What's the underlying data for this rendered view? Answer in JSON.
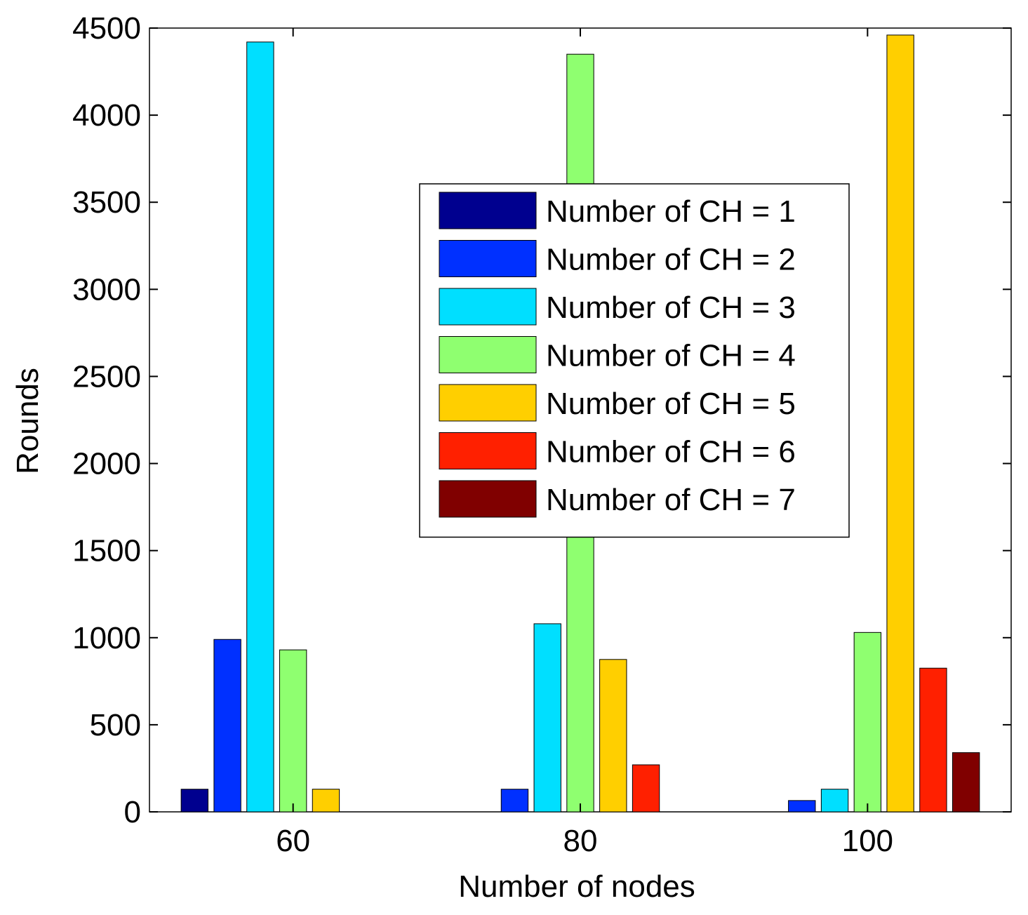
{
  "chart_data": {
    "type": "bar",
    "xlabel": "Number of nodes",
    "ylabel": "Rounds",
    "ylim": [
      0,
      4500
    ],
    "yticks": [
      0,
      500,
      1000,
      1500,
      2000,
      2500,
      3000,
      3500,
      4000,
      4500
    ],
    "categories": [
      "60",
      "80",
      "100"
    ],
    "legend_position": "center-right",
    "grid": false,
    "series": [
      {
        "name": "Number of CH = 1",
        "color": "#00008F",
        "values": [
          130,
          0,
          0
        ]
      },
      {
        "name": "Number of CH = 2",
        "color": "#0030FF",
        "values": [
          990,
          130,
          65
        ]
      },
      {
        "name": "Number of CH = 3",
        "color": "#00DFFF",
        "values": [
          4420,
          1080,
          130
        ]
      },
      {
        "name": "Number of CH = 4",
        "color": "#8FFF70",
        "values": [
          930,
          4350,
          1030
        ]
      },
      {
        "name": "Number of CH = 5",
        "color": "#FFCF00",
        "values": [
          130,
          875,
          4460
        ]
      },
      {
        "name": "Number of CH = 6",
        "color": "#FF2000",
        "values": [
          0,
          270,
          825
        ]
      },
      {
        "name": "Number of CH = 7",
        "color": "#800000",
        "values": [
          0,
          0,
          340
        ]
      }
    ]
  }
}
